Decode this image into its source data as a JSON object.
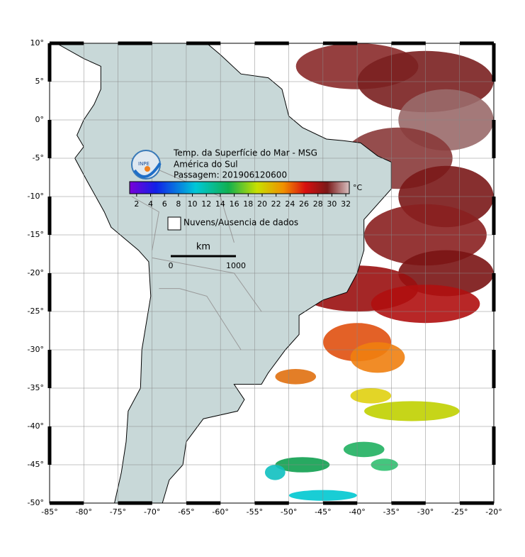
{
  "map": {
    "title_lines": [
      "Temp. da Superfície do Mar - MSG",
      "América do Sul",
      "Passagem: 201906120600"
    ],
    "logo_text": "INPE",
    "xlim": [
      -85,
      -20
    ],
    "ylim": [
      -50,
      10
    ],
    "xticks": [
      {
        "value": -85,
        "label": "-85°"
      },
      {
        "value": -80,
        "label": "-80°"
      },
      {
        "value": -75,
        "label": "-75°"
      },
      {
        "value": -70,
        "label": "-70°"
      },
      {
        "value": -65,
        "label": "-65°"
      },
      {
        "value": -60,
        "label": "-60°"
      },
      {
        "value": -55,
        "label": "-55°"
      },
      {
        "value": -50,
        "label": "-50°"
      },
      {
        "value": -45,
        "label": "-45°"
      },
      {
        "value": -40,
        "label": "-40°"
      },
      {
        "value": -35,
        "label": "-35°"
      },
      {
        "value": -30,
        "label": "-30°"
      },
      {
        "value": -25,
        "label": "-25°"
      },
      {
        "value": -20,
        "label": "-20°"
      }
    ],
    "yticks": [
      {
        "value": 10,
        "label": "10°"
      },
      {
        "value": 5,
        "label": "5°"
      },
      {
        "value": 0,
        "label": "0°"
      },
      {
        "value": -5,
        "label": "-5°"
      },
      {
        "value": -10,
        "label": "-10°"
      },
      {
        "value": -15,
        "label": "-15°"
      },
      {
        "value": -20,
        "label": "-20°"
      },
      {
        "value": -25,
        "label": "-25°"
      },
      {
        "value": -30,
        "label": "-30°"
      },
      {
        "value": -35,
        "label": "-35°"
      },
      {
        "value": -40,
        "label": "-40°"
      },
      {
        "value": -45,
        "label": "-45°"
      },
      {
        "value": -50,
        "label": "-50°"
      }
    ],
    "colorbar": {
      "range": [
        1,
        32.5
      ],
      "ticks": [
        2,
        4,
        6,
        8,
        10,
        12,
        14,
        16,
        18,
        20,
        22,
        24,
        26,
        28,
        30,
        32
      ],
      "unit": "°C"
    },
    "legend_label": "Nuvens/Ausencia de dados",
    "scale": {
      "unit": "km",
      "labels": [
        {
          "value": 0,
          "label": "0"
        },
        {
          "value": 1000,
          "label": "1000"
        }
      ]
    }
  }
}
